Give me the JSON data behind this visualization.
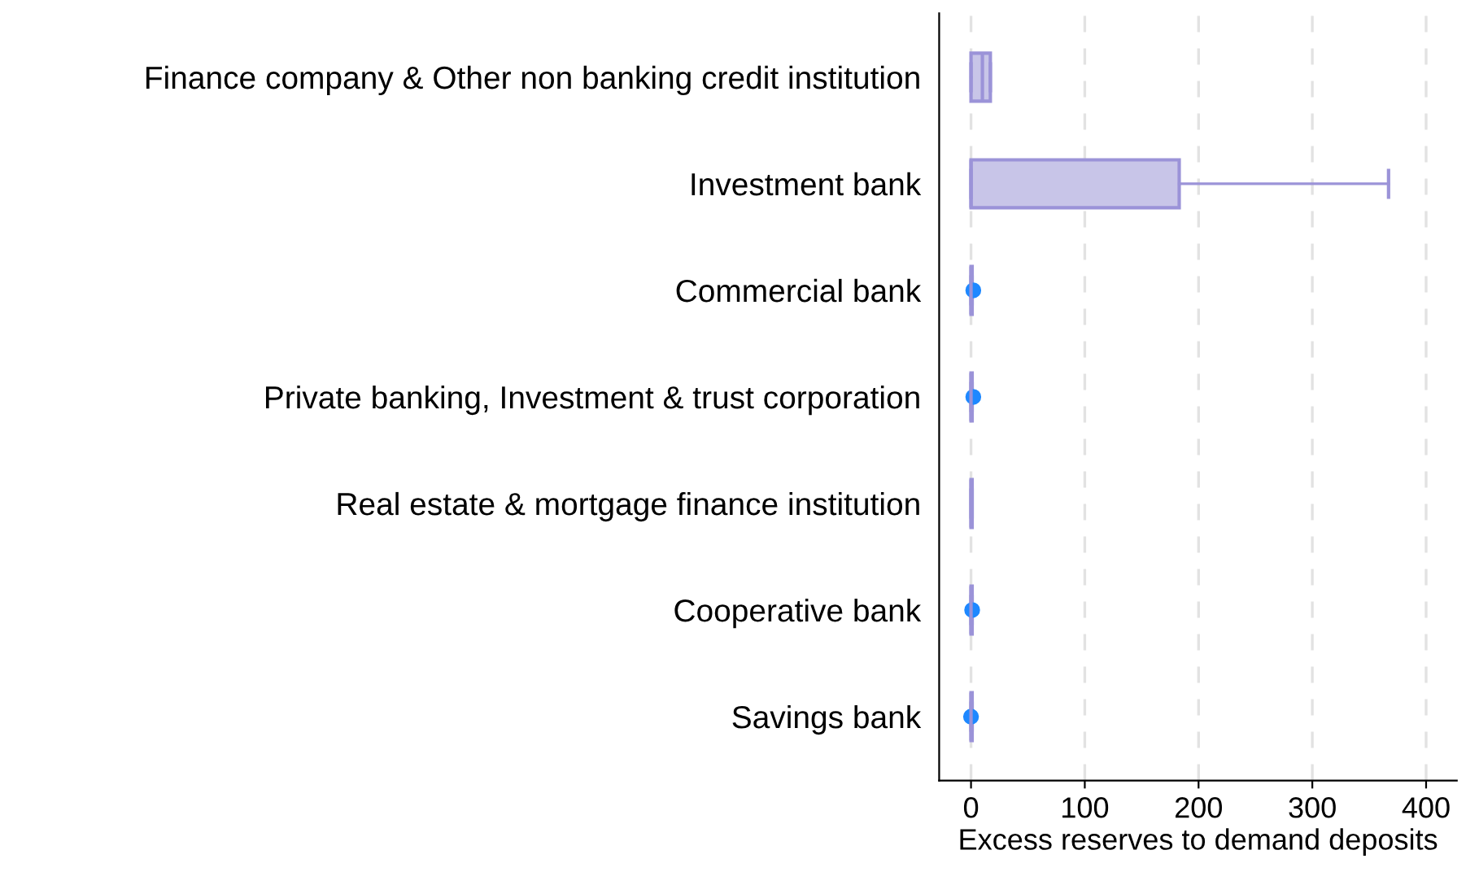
{
  "chart_data": {
    "type": "box",
    "orientation": "horizontal",
    "xlabel": "Excess reserves to demand deposits",
    "categories": [
      "Finance company & Other non banking credit institution",
      "Investment bank",
      "Commercial bank",
      "Private banking, Investment & trust corporation",
      "Real estate & mortgage finance institution",
      "Cooperative bank",
      "Savings bank"
    ],
    "boxes": [
      {
        "low": 0,
        "q1": 0,
        "median": 10,
        "q3": 17,
        "high": 17
      },
      {
        "low": 0,
        "q1": 0,
        "median": 0,
        "q3": 183,
        "high": 367
      },
      {
        "low": 0,
        "q1": 0,
        "median": 0,
        "q3": 1,
        "high": 1,
        "outliers": [
          2
        ]
      },
      {
        "low": 0,
        "q1": 0,
        "median": 0,
        "q3": 1,
        "high": 1,
        "outliers": [
          2
        ]
      },
      {
        "low": 0,
        "q1": 0,
        "median": 0,
        "q3": 1,
        "high": 1
      },
      {
        "low": 0,
        "q1": 0,
        "median": 0,
        "q3": 1,
        "high": 1,
        "outliers": [
          1
        ]
      },
      {
        "low": 0,
        "q1": 0,
        "median": 0,
        "q3": 1,
        "high": 1,
        "outliers": [
          0
        ]
      }
    ],
    "color": "#c8c5e8",
    "xlim": [
      -28,
      427
    ],
    "xticks": [
      0,
      100,
      200,
      300,
      400
    ],
    "grid": "x"
  }
}
